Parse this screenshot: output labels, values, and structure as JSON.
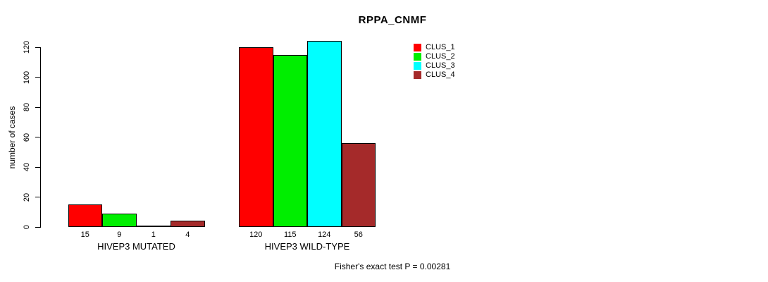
{
  "chart_data": {
    "type": "bar",
    "title": "RPPA_CNMF",
    "ylabel": "number of cases",
    "xlabel": "",
    "ylim": [
      0,
      120
    ],
    "ytick_step": 20,
    "grid": false,
    "legend_position": "top-right-inside",
    "categories": [
      "HIVEP3 MUTATED",
      "HIVEP3 WILD-TYPE"
    ],
    "series": [
      {
        "name": "CLUS_1",
        "color": "#FF0000",
        "values": [
          15,
          120
        ]
      },
      {
        "name": "CLUS_2",
        "color": "#00EE00",
        "values": [
          9,
          115
        ]
      },
      {
        "name": "CLUS_3",
        "color": "#00FFFF",
        "values": [
          1,
          124
        ]
      },
      {
        "name": "CLUS_4",
        "color": "#A52A2A",
        "values": [
          4,
          56
        ]
      }
    ],
    "bar_value_labels": [
      [
        "15",
        "9",
        "1",
        "4"
      ],
      [
        "120",
        "115",
        "124",
        "56"
      ]
    ],
    "annotation": "Fisher's exact test P = 0.00281"
  }
}
